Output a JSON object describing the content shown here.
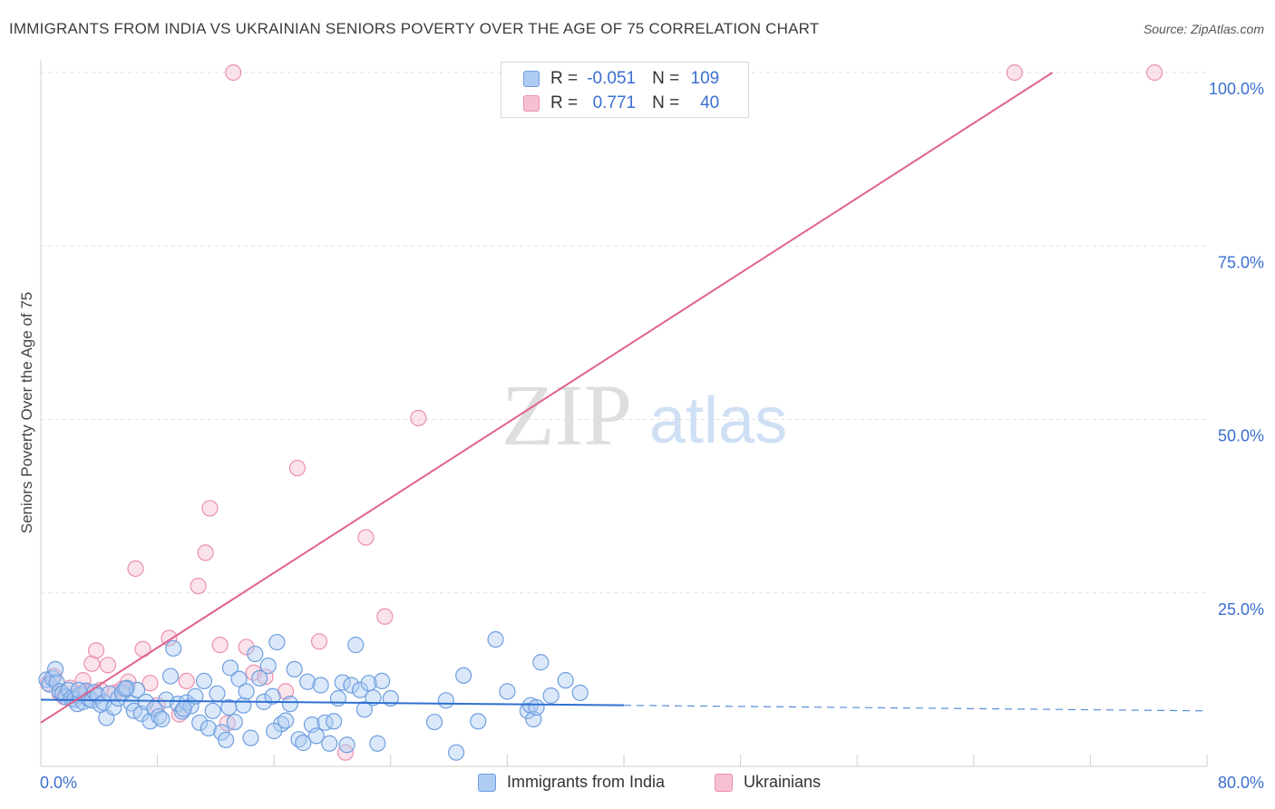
{
  "title": "IMMIGRANTS FROM INDIA VS UKRAINIAN SENIORS POVERTY OVER THE AGE OF 75 CORRELATION CHART",
  "source": "Source: ZipAtlas.com",
  "watermark": {
    "zip": "ZIP",
    "atlas": "atlas"
  },
  "legend": {
    "r_label": "R =",
    "n_label": "N =",
    "rows": [
      {
        "name": "Immigrants from India",
        "r": "-0.051",
        "n": "109"
      },
      {
        "name": "Ukrainians",
        "r": "0.771",
        "n": "40"
      }
    ]
  },
  "colors": {
    "india_fill": "#aecbf2",
    "india_stroke": "#6f9fe0",
    "india_line": "#2f6fd0",
    "ukr_fill": "#f7c0d2",
    "ukr_stroke": "#eb8fb0",
    "ukr_line": "#e0628c",
    "axis_label": "#3a6fcf",
    "grid": "#e2e2e2"
  },
  "chart_data": {
    "type": "scatter",
    "title": "IMMIGRANTS FROM INDIA VS UKRAINIAN SENIORS POVERTY OVER THE AGE OF 75 CORRELATION CHART",
    "xlabel": "",
    "ylabel": "Seniors Poverty Over the Age of 75",
    "xlim": [
      0,
      80
    ],
    "ylim": [
      0,
      100
    ],
    "x_tick_labels": [
      {
        "value": 0,
        "label": "0.0%"
      },
      {
        "value": 80,
        "label": "80.0%"
      }
    ],
    "x_minor_ticks": [
      0,
      8,
      16,
      24,
      32,
      40,
      48,
      56,
      64,
      72,
      80
    ],
    "y_tick_labels": [
      {
        "value": 25,
        "label": "25.0%"
      },
      {
        "value": 50,
        "label": "50.0%"
      },
      {
        "value": 75,
        "label": "75.0%"
      },
      {
        "value": 100,
        "label": "100.0%"
      }
    ],
    "grid": true,
    "series": [
      {
        "name": "Immigrants from India",
        "r": -0.051,
        "n": 109,
        "trend": {
          "x0": 0,
          "y0": 9.6,
          "x1": 80,
          "y1": 8.0,
          "solid_until_x": 40
        },
        "points": [
          [
            0.4,
            12.5
          ],
          [
            0.6,
            11.8
          ],
          [
            0.8,
            12.7
          ],
          [
            1.0,
            14.0
          ],
          [
            1.1,
            12.1
          ],
          [
            1.3,
            10.8
          ],
          [
            1.5,
            10.5
          ],
          [
            1.7,
            10.0
          ],
          [
            1.9,
            11.0
          ],
          [
            2.1,
            9.8
          ],
          [
            2.3,
            9.6
          ],
          [
            2.5,
            9.0
          ],
          [
            2.7,
            10.3
          ],
          [
            2.9,
            9.3
          ],
          [
            3.1,
            10.9
          ],
          [
            3.3,
            9.7
          ],
          [
            3.5,
            9.5
          ],
          [
            3.7,
            10.7
          ],
          [
            3.9,
            10.2
          ],
          [
            4.1,
            8.9
          ],
          [
            4.3,
            9.2
          ],
          [
            4.5,
            7.0
          ],
          [
            4.7,
            10.5
          ],
          [
            5.0,
            8.5
          ],
          [
            5.3,
            9.8
          ],
          [
            5.6,
            10.6
          ],
          [
            5.9,
            11.3
          ],
          [
            6.2,
            9.1
          ],
          [
            6.4,
            8.0
          ],
          [
            6.6,
            11.0
          ],
          [
            6.9,
            7.6
          ],
          [
            7.2,
            9.3
          ],
          [
            7.5,
            6.5
          ],
          [
            7.8,
            8.3
          ],
          [
            8.1,
            7.2
          ],
          [
            8.3,
            6.8
          ],
          [
            8.6,
            9.6
          ],
          [
            8.9,
            13.0
          ],
          [
            9.1,
            17.0
          ],
          [
            9.4,
            9.0
          ],
          [
            9.7,
            7.9
          ],
          [
            10.0,
            9.2
          ],
          [
            10.3,
            8.7
          ],
          [
            10.6,
            10.1
          ],
          [
            10.9,
            6.3
          ],
          [
            11.2,
            12.3
          ],
          [
            11.5,
            5.5
          ],
          [
            11.8,
            8.0
          ],
          [
            12.1,
            10.5
          ],
          [
            12.4,
            4.9
          ],
          [
            12.7,
            3.8
          ],
          [
            13.0,
            14.2
          ],
          [
            13.3,
            6.4
          ],
          [
            13.6,
            12.6
          ],
          [
            13.9,
            8.8
          ],
          [
            14.1,
            10.8
          ],
          [
            14.4,
            4.1
          ],
          [
            14.7,
            16.2
          ],
          [
            15.0,
            12.7
          ],
          [
            15.3,
            9.3
          ],
          [
            15.6,
            14.5
          ],
          [
            15.9,
            10.1
          ],
          [
            16.2,
            17.9
          ],
          [
            16.5,
            6.1
          ],
          [
            16.8,
            6.6
          ],
          [
            17.1,
            9.0
          ],
          [
            17.4,
            14.0
          ],
          [
            17.7,
            3.9
          ],
          [
            18.0,
            3.4
          ],
          [
            18.3,
            12.2
          ],
          [
            18.6,
            6.0
          ],
          [
            18.9,
            4.4
          ],
          [
            19.2,
            11.7
          ],
          [
            19.5,
            6.3
          ],
          [
            19.8,
            3.3
          ],
          [
            20.1,
            6.5
          ],
          [
            20.4,
            9.8
          ],
          [
            20.7,
            12.1
          ],
          [
            21.0,
            3.1
          ],
          [
            21.3,
            11.7
          ],
          [
            21.6,
            17.5
          ],
          [
            21.9,
            11.0
          ],
          [
            22.2,
            8.2
          ],
          [
            22.5,
            12.0
          ],
          [
            22.8,
            9.9
          ],
          [
            23.1,
            3.3
          ],
          [
            23.4,
            12.3
          ],
          [
            24.0,
            9.8
          ],
          [
            27.0,
            6.4
          ],
          [
            27.8,
            9.5
          ],
          [
            28.5,
            2.0
          ],
          [
            29.0,
            13.1
          ],
          [
            30.0,
            6.5
          ],
          [
            31.2,
            18.3
          ],
          [
            32.0,
            10.8
          ],
          [
            33.4,
            8.0
          ],
          [
            33.6,
            8.8
          ],
          [
            33.8,
            6.8
          ],
          [
            34.0,
            8.5
          ],
          [
            34.3,
            15.0
          ],
          [
            35.0,
            10.2
          ],
          [
            36.0,
            12.4
          ],
          [
            37.0,
            10.6
          ],
          [
            5.8,
            11.2
          ],
          [
            2.6,
            11.0
          ],
          [
            12.9,
            8.5
          ],
          [
            16.0,
            5.1
          ],
          [
            9.8,
            8.3
          ]
        ]
      },
      {
        "name": "Ukrainians",
        "r": 0.771,
        "n": 40,
        "trend": {
          "x0": 0,
          "y0": 6.3,
          "x1": 69.4,
          "y1": 100.0
        },
        "points": [
          [
            0.5,
            12.0
          ],
          [
            0.9,
            13.0
          ],
          [
            1.3,
            10.5
          ],
          [
            1.6,
            10.0
          ],
          [
            2.0,
            11.3
          ],
          [
            2.5,
            10.2
          ],
          [
            2.9,
            12.4
          ],
          [
            3.2,
            10.7
          ],
          [
            3.5,
            14.8
          ],
          [
            3.8,
            16.7
          ],
          [
            4.1,
            11.0
          ],
          [
            4.6,
            14.6
          ],
          [
            5.1,
            10.6
          ],
          [
            5.6,
            11.2
          ],
          [
            6.0,
            12.2
          ],
          [
            6.5,
            28.5
          ],
          [
            7.0,
            16.9
          ],
          [
            7.5,
            12.0
          ],
          [
            8.0,
            8.8
          ],
          [
            8.8,
            18.5
          ],
          [
            9.5,
            7.5
          ],
          [
            10.0,
            12.3
          ],
          [
            10.8,
            26.0
          ],
          [
            11.3,
            30.8
          ],
          [
            11.6,
            37.2
          ],
          [
            12.3,
            17.5
          ],
          [
            12.8,
            6.2
          ],
          [
            13.2,
            100.0
          ],
          [
            14.1,
            17.2
          ],
          [
            14.6,
            13.5
          ],
          [
            16.8,
            10.8
          ],
          [
            17.6,
            43.0
          ],
          [
            19.1,
            18.0
          ],
          [
            20.9,
            2.0
          ],
          [
            22.3,
            33.0
          ],
          [
            23.6,
            21.6
          ],
          [
            25.9,
            50.2
          ],
          [
            66.8,
            100.0
          ],
          [
            76.4,
            100.0
          ],
          [
            15.4,
            12.9
          ]
        ]
      }
    ]
  }
}
